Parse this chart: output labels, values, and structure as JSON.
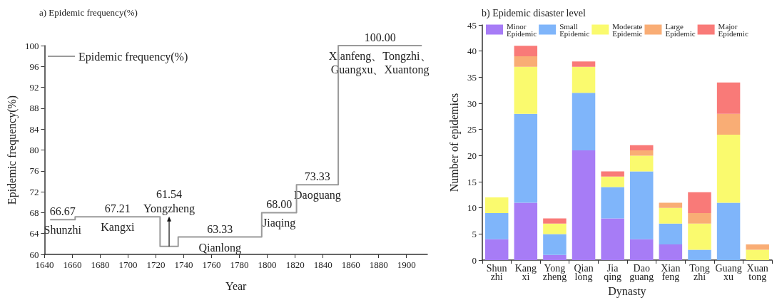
{
  "chart_data": [
    {
      "type": "step",
      "title": "a) Epidemic frequency(%)",
      "xlabel": "Year",
      "ylabel": "Epidemic frequency(%)",
      "x": [
        1644,
        1662,
        1723,
        1736,
        1796,
        1821,
        1851,
        1911
      ],
      "series": [
        {
          "name": "Epidemic frequency(%)",
          "color": "#9a9a9a",
          "values": [
            66.67,
            67.21,
            61.54,
            63.33,
            68.0,
            73.33,
            100.0,
            100.0
          ]
        }
      ],
      "xlim": [
        1640,
        1915
      ],
      "xticks": [
        1640,
        1660,
        1680,
        1700,
        1720,
        1740,
        1760,
        1780,
        1800,
        1820,
        1840,
        1860,
        1880,
        1900
      ],
      "ylim": [
        60,
        100
      ],
      "yticks": [
        60,
        64,
        68,
        72,
        76,
        80,
        84,
        88,
        92,
        96,
        100
      ],
      "value_labels": [
        "66.67",
        "67.21",
        "61.54",
        "63.33",
        "68.00",
        "73.33",
        "100.00",
        null
      ],
      "annotations": [
        {
          "text": "Shunzhi",
          "x": 1653,
          "y": 66.67
        },
        {
          "text": "Kangxi",
          "x": 1692.5,
          "y": 67.21
        },
        {
          "text": "Yongzheng",
          "x": 1729.5,
          "y": 61.54
        },
        {
          "text": "Qianlong",
          "x": 1766,
          "y": 63.33
        },
        {
          "text": "Jiaqing",
          "x": 1808.5,
          "y": 68.0
        },
        {
          "text": "Daoguang",
          "x": 1836,
          "y": 73.33
        },
        {
          "text": "Xianfeng、Tongzhi、\nGuangxu、Xuantong",
          "x": 1881,
          "y": 100.0
        }
      ],
      "legend": "top left",
      "grid": false,
      "marker": "none",
      "line_style": "solid"
    },
    {
      "type": "bar",
      "stacked": true,
      "title": "b) Epidemic disaster level",
      "xlabel": "Dynasty",
      "ylabel": "Number of epidemics",
      "categories": [
        "Shun\nzhi",
        "Kang\nxi",
        "Yong\nzheng",
        "Qian\nlong",
        "Jia\nqing",
        "Dao\nguang",
        "Xian\nfeng",
        "Tong\nzhi",
        "Guang\nxu",
        "Xuan\ntong"
      ],
      "series": [
        {
          "name": "Minor\nEpidemic",
          "color": "#a77cf6",
          "values": [
            4,
            11,
            1,
            21,
            8,
            4,
            3,
            0,
            0,
            0
          ]
        },
        {
          "name": "Small\nEpidemic",
          "color": "#7fb5fa",
          "values": [
            5,
            17,
            4,
            11,
            6,
            13,
            4,
            2,
            11,
            0
          ]
        },
        {
          "name": "Moderate\nEpidemic",
          "color": "#fafa6e",
          "values": [
            3,
            9,
            2,
            5,
            2,
            3,
            3,
            5,
            13,
            2
          ]
        },
        {
          "name": "Large\nEpidemic",
          "color": "#f9ad75",
          "values": [
            0,
            2,
            0,
            0,
            0,
            1,
            1,
            2,
            4,
            1
          ]
        },
        {
          "name": "Major\nEpidemic",
          "color": "#f97a78",
          "values": [
            0,
            2,
            1,
            1,
            1,
            1,
            0,
            4,
            6,
            0
          ]
        }
      ],
      "ylim": [
        0,
        45
      ],
      "yticks": [
        0,
        5,
        10,
        15,
        20,
        25,
        30,
        35,
        40,
        45
      ],
      "legend": "top",
      "grid": false
    }
  ]
}
